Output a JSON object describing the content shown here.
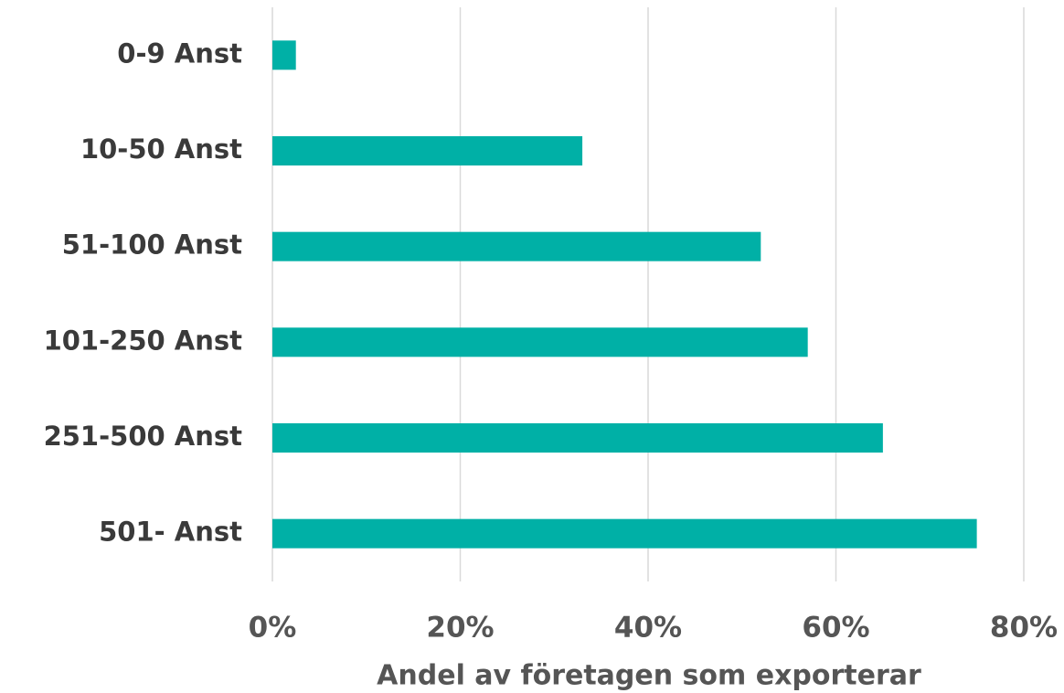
{
  "chart_data": {
    "type": "bar",
    "orientation": "horizontal",
    "x_label": "Andel av företagen som exporterar",
    "categories": [
      "0-9 Anst",
      "10-50 Anst",
      "51-100 Anst",
      "101-250 Anst",
      "251-500 Anst",
      "501- Anst"
    ],
    "values": [
      2.5,
      33,
      52,
      57,
      65,
      75
    ],
    "color": "#00b0a6",
    "xlim": [
      0,
      80
    ],
    "xticks": [
      {
        "value": 0,
        "label": "0%"
      },
      {
        "value": 20,
        "label": "20%"
      },
      {
        "value": 40,
        "label": "40%"
      },
      {
        "value": 60,
        "label": "60%"
      },
      {
        "value": 80,
        "label": "80%"
      }
    ],
    "grid": true
  }
}
